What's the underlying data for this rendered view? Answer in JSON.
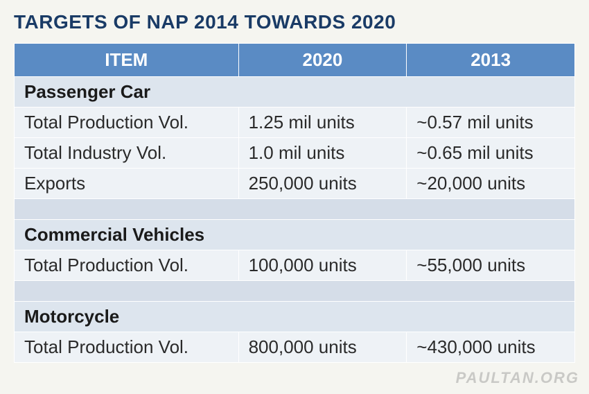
{
  "title": "TARGETS OF NAP 2014 TOWARDS 2020",
  "columns": {
    "item": "ITEM",
    "y2020": "2020",
    "y2013": "2013"
  },
  "sections": [
    {
      "heading": "Passenger Car",
      "rows": [
        {
          "label": "Total Production Vol.",
          "y2020": "1.25 mil units",
          "y2013": "~0.57 mil units"
        },
        {
          "label": "Total Industry Vol.",
          "y2020": "1.0 mil units",
          "y2013": "~0.65 mil units"
        },
        {
          "label": "Exports",
          "y2020": "250,000 units",
          "y2013": "~20,000 units"
        }
      ]
    },
    {
      "heading": "Commercial Vehicles",
      "rows": [
        {
          "label": "Total Production Vol.",
          "y2020": "100,000 units",
          "y2013": "~55,000 units"
        }
      ]
    },
    {
      "heading": "Motorcycle",
      "rows": [
        {
          "label": "Total Production Vol.",
          "y2020": "800,000 units",
          "y2013": "~430,000 units"
        }
      ]
    }
  ],
  "watermark": "PAULTAN.ORG",
  "style": {
    "header_bg": "#5a8bc4",
    "header_fg": "#ffffff",
    "section_bg": "#dde5ee",
    "row_bg": "#eef2f6",
    "spacer_bg": "#d5dde8",
    "title_color": "#1a3b66",
    "font_family": "Arial",
    "title_fontsize_pt": 21,
    "body_fontsize_pt": 19
  }
}
